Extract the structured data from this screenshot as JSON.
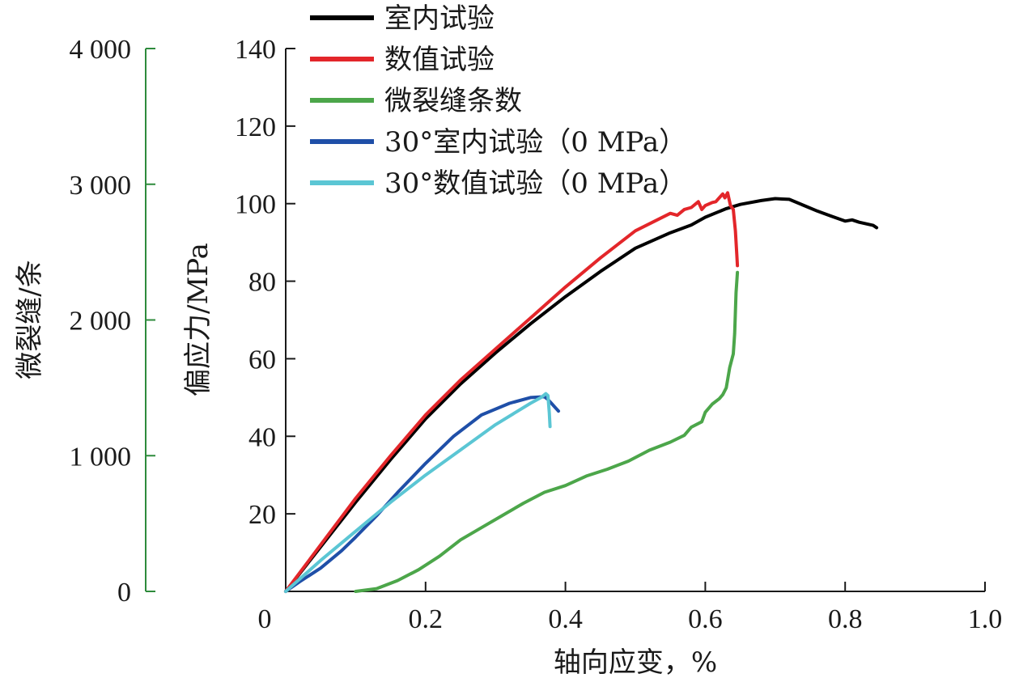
{
  "chart_data": {
    "type": "line",
    "xlabel": "轴向应变，%",
    "ylabel": "偏应力/MPa",
    "y2label": "微裂缝/条",
    "xlim": [
      0,
      1.0
    ],
    "ylim": [
      0,
      140
    ],
    "y2lim": [
      0,
      4000
    ],
    "x_ticks": [
      0,
      0.2,
      0.4,
      0.6,
      0.8,
      1.0
    ],
    "x_tick_labels": [
      "0",
      "0.2",
      "0.4",
      "0.6",
      "0.8",
      "1.0"
    ],
    "y_ticks": [
      20,
      40,
      60,
      80,
      100,
      120,
      140
    ],
    "y_tick_labels": [
      "20",
      "40",
      "60",
      "80",
      "100",
      "120",
      "140"
    ],
    "y2_ticks": [
      0,
      1000,
      2000,
      3000,
      4000
    ],
    "y2_tick_labels": [
      "0",
      "1 000",
      "2 000",
      "3 000",
      "4 000"
    ],
    "grid": false,
    "legend_position": "top-left",
    "series": [
      {
        "name": "室内试验",
        "color": "#000000",
        "axis": "left",
        "x": [
          0,
          0.05,
          0.1,
          0.15,
          0.2,
          0.25,
          0.3,
          0.35,
          0.4,
          0.45,
          0.5,
          0.55,
          0.58,
          0.6,
          0.63,
          0.65,
          0.68,
          0.7,
          0.71,
          0.72,
          0.74,
          0.76,
          0.78,
          0.8,
          0.81,
          0.82,
          0.84,
          0.845
        ],
        "y": [
          0,
          11.5,
          23,
          34,
          44.5,
          53.5,
          61.5,
          69,
          76,
          82.5,
          88.5,
          92.5,
          94.5,
          96.5,
          98.7,
          99.8,
          100.8,
          101.3,
          101.2,
          101.1,
          99.6,
          98.1,
          96.8,
          95.5,
          95.8,
          95.2,
          94.4,
          93.8
        ]
      },
      {
        "name": "数值试验",
        "color": "#e3262a",
        "axis": "left",
        "x": [
          0,
          0.05,
          0.1,
          0.15,
          0.2,
          0.25,
          0.3,
          0.35,
          0.4,
          0.45,
          0.5,
          0.55,
          0.56,
          0.57,
          0.58,
          0.59,
          0.595,
          0.6,
          0.61,
          0.615,
          0.62,
          0.625,
          0.628,
          0.632,
          0.636,
          0.64,
          0.643,
          0.645,
          0.646
        ],
        "y": [
          0,
          12,
          24,
          35,
          45.5,
          54.5,
          62.5,
          70.5,
          78.5,
          86,
          93,
          97.5,
          97,
          98.5,
          99,
          100.5,
          98.5,
          99.5,
          100.3,
          100.5,
          101.5,
          102.5,
          101.5,
          102.8,
          99.5,
          98.5,
          93,
          87,
          84
        ]
      },
      {
        "name": "微裂缝条数",
        "color": "#4ca64a",
        "axis": "right",
        "x": [
          0.1,
          0.13,
          0.16,
          0.19,
          0.22,
          0.25,
          0.28,
          0.31,
          0.34,
          0.37,
          0.4,
          0.43,
          0.46,
          0.49,
          0.52,
          0.55,
          0.57,
          0.58,
          0.595,
          0.6,
          0.61,
          0.62,
          0.625,
          0.63,
          0.635,
          0.64,
          0.642,
          0.644,
          0.646
        ],
        "y": [
          0,
          20,
          80,
          160,
          260,
          380,
          470,
          560,
          650,
          730,
          780,
          850,
          900,
          960,
          1040,
          1100,
          1150,
          1210,
          1250,
          1320,
          1380,
          1420,
          1450,
          1500,
          1650,
          1750,
          1900,
          2200,
          2350
        ]
      },
      {
        "name": "30°室内试验（0 MPa）",
        "color": "#1f4fa8",
        "axis": "left",
        "x": [
          0,
          0.02,
          0.05,
          0.08,
          0.1,
          0.13,
          0.16,
          0.2,
          0.24,
          0.28,
          0.32,
          0.35,
          0.37,
          0.375,
          0.38,
          0.385,
          0.39
        ],
        "y": [
          0,
          2.5,
          6,
          10.5,
          14,
          19.5,
          25.5,
          33,
          40,
          45.5,
          48.5,
          50,
          50.2,
          49.5,
          48.5,
          47.5,
          46.5
        ]
      },
      {
        "name": "30°数值试验（0 MPa）",
        "color": "#5bc6d4",
        "axis": "left",
        "x": [
          0,
          0.05,
          0.1,
          0.15,
          0.2,
          0.25,
          0.3,
          0.35,
          0.365,
          0.372,
          0.375,
          0.377,
          0.378
        ],
        "y": [
          0,
          8,
          15.5,
          23,
          30,
          36.5,
          43,
          48.5,
          50,
          51,
          50.5,
          46,
          42.5
        ]
      }
    ]
  }
}
